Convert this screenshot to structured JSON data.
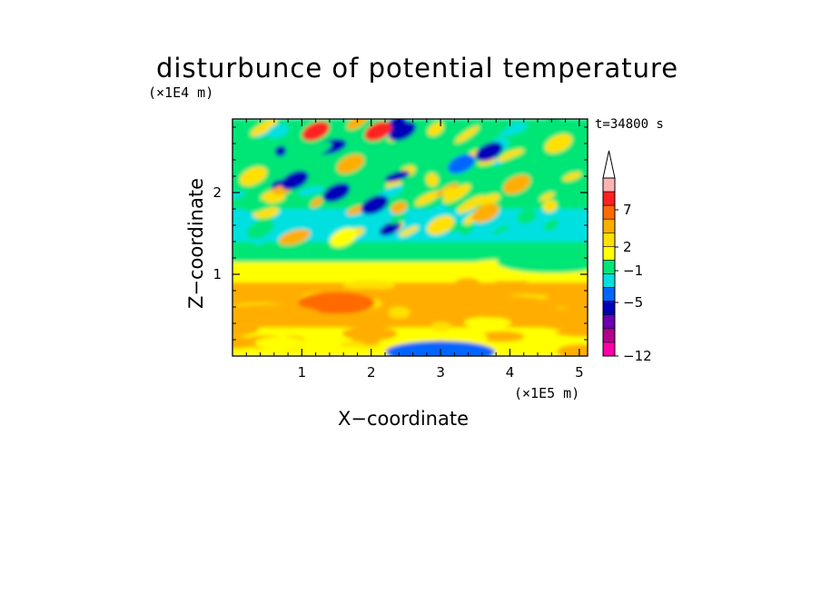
{
  "chart_data": {
    "type": "heatmap",
    "title": "disturbunce of potential temperature",
    "xlabel": "X−coordinate",
    "ylabel": "Z−coordinate",
    "x_unit": "(×1E5 m)",
    "z_unit": "(×1E4 m)",
    "time_label": "t=34800 s",
    "xlim": [
      0,
      5.12
    ],
    "ylim": [
      0,
      2.9
    ],
    "x_ticks": [
      "1",
      "2",
      "3",
      "4",
      "5"
    ],
    "y_ticks": [
      "1",
      "2"
    ],
    "colorbar": {
      "labels": [
        "7",
        "2",
        "−1",
        "−5",
        "−12"
      ],
      "colors": [
        "#ffb3b3",
        "#ff2020",
        "#ff6a00",
        "#ffae00",
        "#ffe000",
        "#ffff00",
        "#00e676",
        "#00e0e0",
        "#0066ff",
        "#0000b8",
        "#6a00b0",
        "#b0008a",
        "#ff00a8"
      ],
      "extend_max": true
    },
    "bands": [
      {
        "z": [
          0.0,
          0.1
        ],
        "value": 1
      },
      {
        "z": [
          0.1,
          0.35
        ],
        "value": 1
      },
      {
        "z": [
          0.35,
          0.9
        ],
        "value": 3
      },
      {
        "z": [
          0.9,
          1.15
        ],
        "value": 1
      },
      {
        "z": [
          1.15,
          1.4
        ],
        "value": 0
      },
      {
        "z": [
          1.4,
          1.8
        ],
        "value": -1
      },
      {
        "z": [
          1.8,
          2.9
        ],
        "value": 0
      }
    ],
    "features": [
      {
        "x": 1.5,
        "z": 0.65,
        "value": 5
      },
      {
        "x": 0.5,
        "z": 0.5,
        "value": 3
      },
      {
        "x": 5.0,
        "z": 0.45,
        "value": 4
      },
      {
        "x": 3.9,
        "z": 0.6,
        "value": 3
      },
      {
        "x": 4.0,
        "z": 1.05,
        "value": 1
      },
      {
        "x": 4.6,
        "z": 1.15,
        "value": 0
      },
      {
        "x": 3.7,
        "z": 2.5,
        "value": -5
      },
      {
        "x": 2.45,
        "z": 2.75,
        "value": -5
      },
      {
        "x": 1.5,
        "z": 2.0,
        "value": -5
      },
      {
        "x": 0.9,
        "z": 2.15,
        "value": -5
      },
      {
        "x": 2.05,
        "z": 1.85,
        "value": -5
      },
      {
        "x": 3.3,
        "z": 2.35,
        "value": -2
      },
      {
        "x": 4.7,
        "z": 2.6,
        "value": 2
      },
      {
        "x": 3.65,
        "z": 1.75,
        "value": 4
      },
      {
        "x": 1.2,
        "z": 2.75,
        "value": 7
      },
      {
        "x": 2.1,
        "z": 2.75,
        "value": 7
      },
      {
        "x": 1.7,
        "z": 2.35,
        "value": 3
      },
      {
        "x": 0.3,
        "z": 2.2,
        "value": 2
      },
      {
        "x": 4.1,
        "z": 2.1,
        "value": 3
      },
      {
        "x": 1.6,
        "z": 1.45,
        "value": 1
      },
      {
        "x": 3.0,
        "z": 1.6,
        "value": 2
      },
      {
        "x": 0.4,
        "z": 1.55,
        "value": 0
      },
      {
        "x": 3.0,
        "z": 0.05,
        "value": -2
      }
    ]
  }
}
